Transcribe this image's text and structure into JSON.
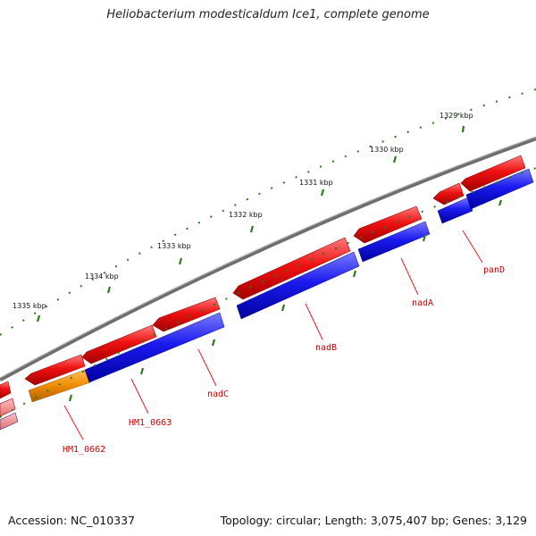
{
  "title": "Heliobacterium modesticaldum Ice1, complete genome",
  "footer": {
    "accession": "Accession: NC_010337",
    "topology": "Topology: circular; Length: 3,075,407 bp; Genes: 3,129"
  },
  "ticks": [
    "1329 kbp",
    "1330 kbp",
    "1331 kbp",
    "1332 kbp",
    "1333 kbp",
    "1334 kbp",
    "1335 kbp"
  ],
  "gene_labels": [
    "panD",
    "nadA",
    "nadB",
    "nadC",
    "HM1_0663",
    "HM1_0662"
  ],
  "colors": {
    "backbone": "#7a7a7a",
    "cds_red": "#ee1111",
    "gene_blue": "#1a1aee",
    "gene_orange": "#f08c00",
    "tick_green": "#2a7a1a",
    "label_red": "#cc0000"
  }
}
